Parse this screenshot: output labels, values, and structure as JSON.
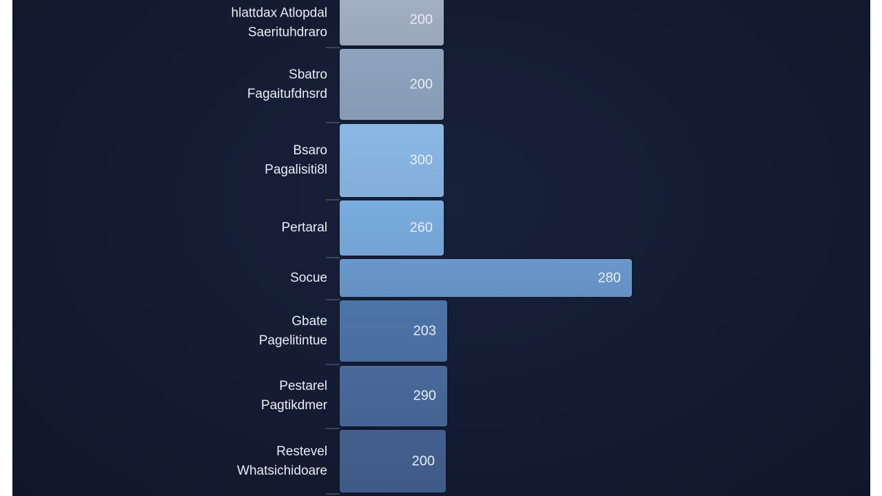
{
  "chart_data": {
    "type": "bar",
    "orientation": "horizontal",
    "categories": [
      [
        "hlattdax Atlopdal",
        "Saerituhdraro"
      ],
      [
        "Sbatro",
        "Fagaitufdnsrd"
      ],
      [
        "Bsaro",
        "Pagalisiti8l"
      ],
      [
        "Pertaral"
      ],
      [
        "Socue"
      ],
      [
        "Gbate",
        "Pagelitintue"
      ],
      [
        "Pestarel",
        "Pagtikdmer"
      ],
      [
        "Restevel",
        "Whatsichidoare"
      ]
    ],
    "values": [
      200,
      200,
      300,
      260,
      280,
      203,
      290,
      200
    ],
    "value_labels": [
      "200",
      "200",
      "300",
      "260",
      "280",
      "203",
      "290",
      "200"
    ],
    "colors": [
      "#a3b0c4",
      "#8ea3bd",
      "#8ab8e4",
      "#7aacdf",
      "#6a98cc",
      "#4d74a6",
      "#48699a",
      "#435f8e"
    ],
    "background": "#131b31",
    "grid": false,
    "legend": "none"
  }
}
